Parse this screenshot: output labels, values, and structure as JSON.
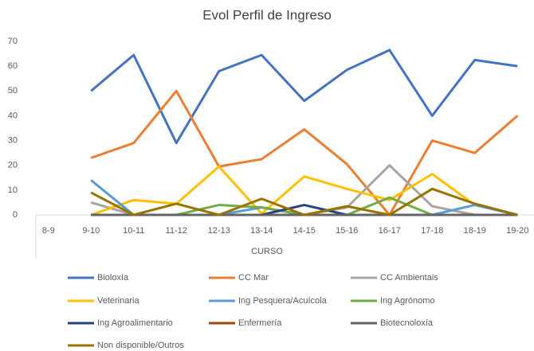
{
  "chart_data": {
    "type": "line",
    "title": "Evol Perfil de Ingreso",
    "x_label": "CURSO",
    "categories": [
      "8-9",
      "9-10",
      "10-11",
      "11-12",
      "12-13",
      "13-14",
      "14-15",
      "15-16",
      "16-17",
      "17-18",
      "18-19",
      "19-20"
    ],
    "ylim": [
      0,
      70
    ],
    "yticks": [
      0,
      10,
      20,
      30,
      40,
      50,
      60,
      70
    ],
    "grid": false,
    "legend": "bottom",
    "series": [
      {
        "name": "Bioloxía",
        "color": "#4472c4",
        "values": [
          null,
          50,
          64.5,
          29,
          58,
          64.5,
          46,
          58.5,
          66.5,
          40,
          62.5,
          60
        ]
      },
      {
        "name": "CC Mar",
        "color": "#ed7d31",
        "values": [
          null,
          23,
          29,
          50,
          19.5,
          22.5,
          34.5,
          20.5,
          0,
          30,
          25,
          40
        ]
      },
      {
        "name": "CC Ambientais",
        "color": "#a5a5a5",
        "values": [
          null,
          5,
          0,
          0,
          0,
          0,
          0,
          3,
          20,
          3.5,
          0,
          0
        ]
      },
      {
        "name": "Veterinaria",
        "color": "#ffc000",
        "values": [
          null,
          0,
          6,
          4.5,
          19.5,
          0.5,
          15.5,
          10.5,
          6,
          16.5,
          4,
          0
        ]
      },
      {
        "name": "Ing Pesquera/Acuícola",
        "color": "#5b9bd5",
        "values": [
          null,
          14,
          0,
          0,
          0,
          3,
          0,
          0,
          0,
          0,
          4,
          0
        ]
      },
      {
        "name": "Ing Agrónomo",
        "color": "#70ad47",
        "values": [
          null,
          0,
          0,
          0,
          4,
          3,
          0,
          0,
          7,
          0,
          0,
          0
        ]
      },
      {
        "name": "Ing Agroalimentario",
        "color": "#264478",
        "values": [
          null,
          0,
          0,
          0,
          0,
          0,
          4,
          0,
          0,
          0,
          0,
          0
        ]
      },
      {
        "name": "Enfermería",
        "color": "#9e480e",
        "values": [
          null,
          0,
          0,
          0,
          0,
          0,
          0,
          0,
          0,
          0,
          0,
          0
        ]
      },
      {
        "name": "Biotecnoloxía",
        "color": "#636363",
        "values": [
          null,
          0,
          0,
          0,
          0,
          0,
          0,
          0,
          0,
          0,
          0,
          0
        ]
      },
      {
        "name": "Non disponible/Outros",
        "color": "#997300",
        "values": [
          null,
          9,
          0,
          4.5,
          0,
          6.5,
          0,
          3.5,
          0,
          10.5,
          4.5,
          0
        ]
      }
    ]
  }
}
